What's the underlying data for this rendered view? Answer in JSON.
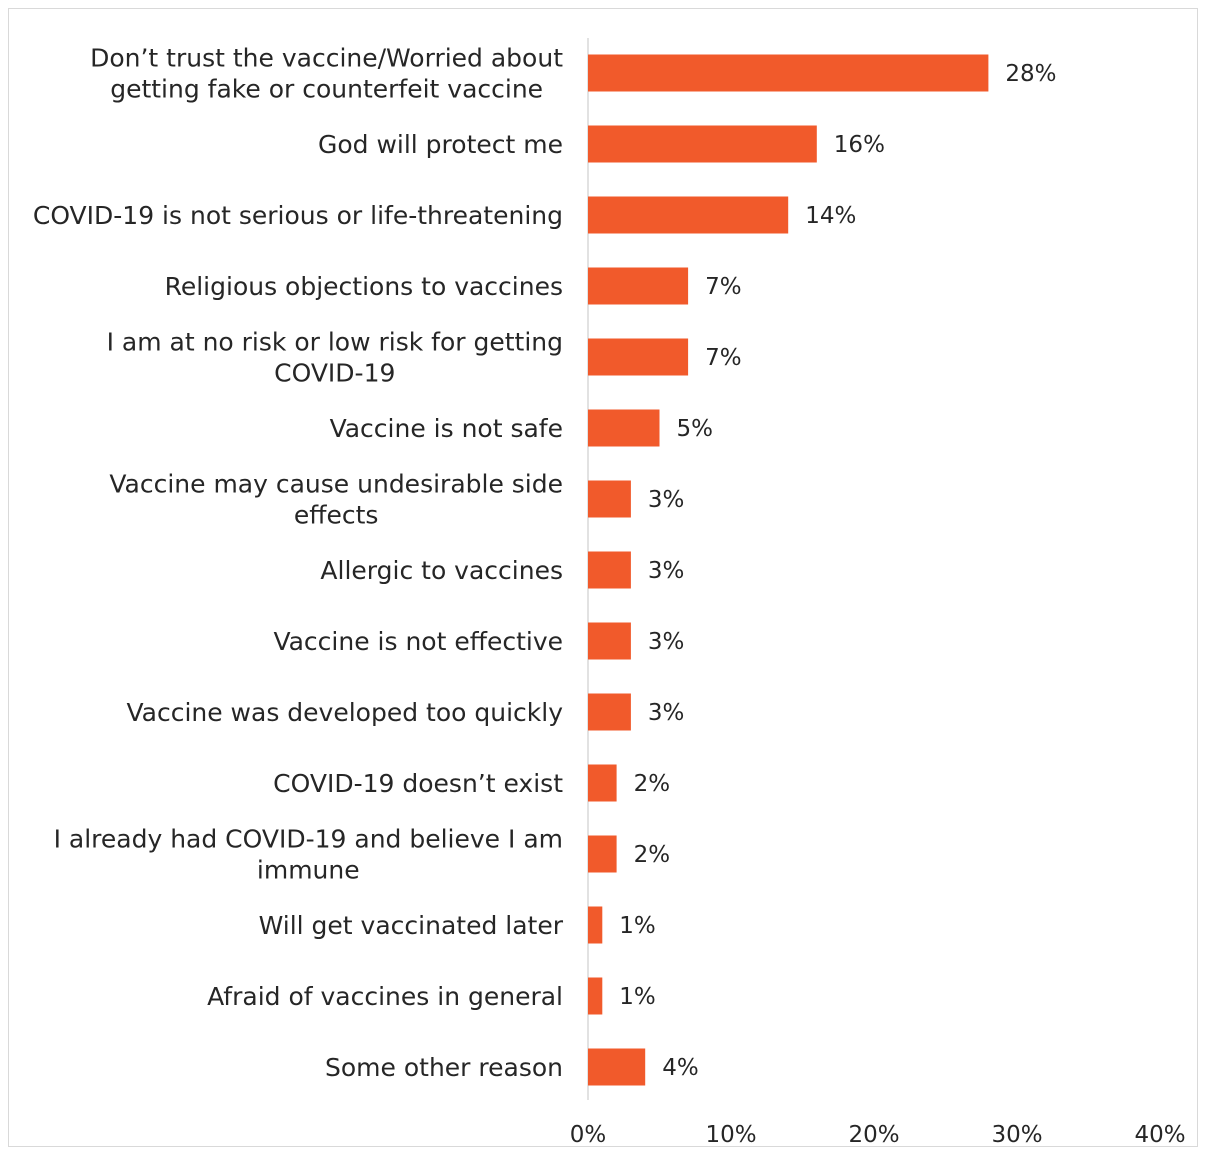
{
  "chart_data": {
    "type": "bar",
    "orientation": "horizontal",
    "title": "",
    "xlabel": "",
    "ylabel": "",
    "color": "#F15A2B",
    "xlim": [
      0,
      40
    ],
    "ticks": [
      "0%",
      "10%",
      "20%",
      "30%",
      "40%"
    ],
    "tick_values": [
      0,
      10,
      20,
      30,
      40
    ],
    "grid": false,
    "legend": "none",
    "categories": [
      [
        "Don’t trust the vaccine/Worried about",
        "getting fake or counterfeit vaccine"
      ],
      [
        "God will protect me"
      ],
      [
        "COVID-19 is not serious or life-threatening"
      ],
      [
        "Religious objections to vaccines"
      ],
      [
        "I am at no risk or low risk for getting",
        "COVID-19"
      ],
      [
        "Vaccine is not safe"
      ],
      [
        "Vaccine may cause undesirable side",
        "effects"
      ],
      [
        "Allergic to vaccines"
      ],
      [
        "Vaccine is not effective"
      ],
      [
        "Vaccine was developed too quickly"
      ],
      [
        "COVID-19 doesn’t exist"
      ],
      [
        "I already had COVID-19 and believe I am",
        "immune"
      ],
      [
        "Will get vaccinated later"
      ],
      [
        "Afraid of vaccines in general"
      ],
      [
        "Some other reason"
      ]
    ],
    "values": [
      28,
      16,
      14,
      7,
      7,
      5,
      3,
      3,
      3,
      3,
      2,
      2,
      1,
      1,
      4
    ],
    "value_labels": [
      "28%",
      "16%",
      "14%",
      "7%",
      "7%",
      "5%",
      "3%",
      "3%",
      "3%",
      "3%",
      "2%",
      "2%",
      "1%",
      "1%",
      "4%"
    ]
  }
}
